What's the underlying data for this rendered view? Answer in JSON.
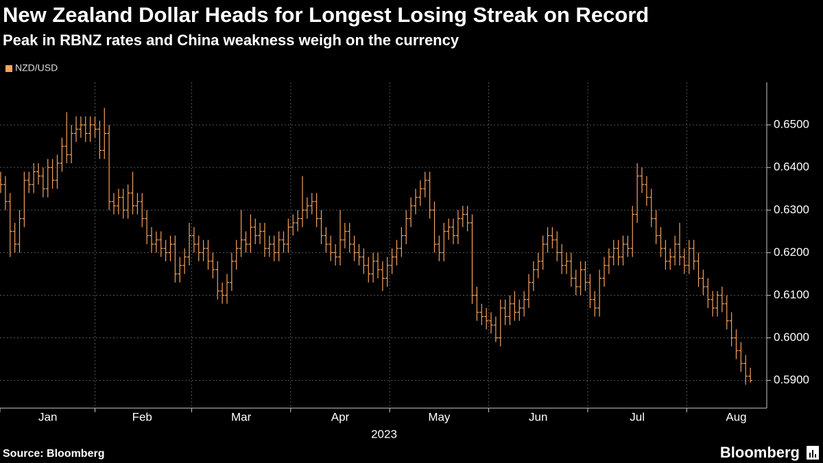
{
  "chart_data": {
    "type": "ohlc",
    "title": "New Zealand Dollar Heads for Longest Losing Streak on Record",
    "subtitle": "Peak in RBNZ rates and China weakness weigh on the currency",
    "xlabel": "2023",
    "source": "Source: Bloomberg",
    "brand": "Bloomberg",
    "legend": "top-left",
    "grid": true,
    "ylim": [
      0.5835,
      0.66
    ],
    "yticks": [
      {
        "value": 0.59,
        "label": "0.5900"
      },
      {
        "value": 0.6,
        "label": "0.6000"
      },
      {
        "value": 0.61,
        "label": "0.6100"
      },
      {
        "value": 0.62,
        "label": "0.6200"
      },
      {
        "value": 0.63,
        "label": "0.6300"
      },
      {
        "value": 0.64,
        "label": "0.6400"
      },
      {
        "value": 0.65,
        "label": "0.6500"
      }
    ],
    "categories": [
      null,
      null,
      null,
      null,
      null,
      null,
      null,
      null,
      null,
      null,
      "Jan",
      null,
      null,
      null,
      null,
      null,
      null,
      null,
      null,
      null,
      null,
      null,
      null,
      null,
      null,
      null,
      null,
      null,
      null,
      null,
      "Feb",
      null,
      null,
      null,
      null,
      null,
      null,
      null,
      null,
      null,
      null,
      null,
      null,
      null,
      null,
      null,
      null,
      null,
      null,
      null,
      null,
      "Mar",
      null,
      null,
      null,
      null,
      null,
      null,
      null,
      null,
      null,
      null,
      null,
      null,
      null,
      null,
      null,
      null,
      null,
      null,
      null,
      null,
      "Apr",
      null,
      null,
      null,
      null,
      null,
      null,
      null,
      null,
      null,
      null,
      null,
      null,
      null,
      null,
      null,
      null,
      null,
      null,
      null,
      null,
      "May",
      null,
      null,
      null,
      null,
      null,
      null,
      null,
      null,
      null,
      null,
      null,
      null,
      null,
      null,
      null,
      null,
      null,
      null,
      null,
      null,
      "Jun",
      null,
      null,
      null,
      null,
      null,
      null,
      null,
      null,
      null,
      null,
      null,
      null,
      null,
      null,
      null,
      null,
      null,
      null,
      null,
      null,
      "Jul",
      null,
      null,
      null,
      null,
      null,
      null,
      null,
      null,
      null,
      null,
      null,
      null,
      null,
      null,
      null,
      null,
      null,
      null,
      null,
      null,
      "Aug",
      null,
      null,
      null
    ],
    "series": [
      {
        "name": "NZD/USD",
        "color": "#f7a35c",
        "open": [
          0.637,
          0.636,
          0.632,
          0.625,
          0.622,
          0.628,
          0.637,
          0.636,
          0.639,
          0.638,
          0.635,
          0.64,
          0.637,
          0.641,
          0.645,
          0.643,
          0.648,
          0.649,
          0.65,
          0.648,
          0.65,
          0.649,
          0.644,
          0.648,
          0.632,
          0.631,
          0.633,
          0.63,
          0.634,
          0.631,
          0.632,
          0.628,
          0.624,
          0.622,
          0.623,
          0.621,
          0.62,
          0.622,
          0.615,
          0.617,
          0.619,
          0.624,
          0.622,
          0.62,
          0.621,
          0.618,
          0.616,
          0.611,
          0.61,
          0.613,
          0.618,
          0.621,
          0.623,
          0.622,
          0.626,
          0.624,
          0.625,
          0.621,
          0.622,
          0.62,
          0.623,
          0.622,
          0.626,
          0.627,
          0.628,
          0.63,
          0.631,
          0.632,
          0.628,
          0.624,
          0.622,
          0.62,
          0.619,
          0.623,
          0.625,
          0.622,
          0.62,
          0.619,
          0.617,
          0.615,
          0.618,
          0.616,
          0.614,
          0.617,
          0.619,
          0.621,
          0.624,
          0.628,
          0.631,
          0.633,
          0.635,
          0.637,
          0.63,
          0.622,
          0.62,
          0.625,
          0.626,
          0.624,
          0.628,
          0.629,
          0.627,
          0.61,
          0.606,
          0.605,
          0.604,
          0.603,
          0.6,
          0.607,
          0.605,
          0.608,
          0.606,
          0.607,
          0.609,
          0.613,
          0.616,
          0.618,
          0.622,
          0.624,
          0.623,
          0.62,
          0.617,
          0.618,
          0.614,
          0.612,
          0.616,
          0.613,
          0.609,
          0.607,
          0.614,
          0.617,
          0.619,
          0.621,
          0.619,
          0.622,
          0.621,
          0.629,
          0.638,
          0.636,
          0.633,
          0.628,
          0.624,
          0.621,
          0.618,
          0.619,
          0.622,
          0.619,
          0.617,
          0.621,
          0.618,
          0.614,
          0.612,
          0.609,
          0.607,
          0.61,
          0.608,
          0.604,
          0.6,
          0.597,
          0.594,
          0.591
        ],
        "high": [
          0.639,
          0.638,
          0.634,
          0.627,
          0.63,
          0.639,
          0.639,
          0.641,
          0.641,
          0.64,
          0.642,
          0.642,
          0.643,
          0.647,
          0.653,
          0.65,
          0.652,
          0.652,
          0.652,
          0.652,
          0.652,
          0.651,
          0.654,
          0.65,
          0.634,
          0.635,
          0.635,
          0.636,
          0.639,
          0.634,
          0.634,
          0.63,
          0.626,
          0.625,
          0.625,
          0.623,
          0.624,
          0.624,
          0.619,
          0.621,
          0.627,
          0.626,
          0.624,
          0.623,
          0.623,
          0.62,
          0.618,
          0.613,
          0.615,
          0.62,
          0.623,
          0.63,
          0.625,
          0.629,
          0.628,
          0.627,
          0.627,
          0.624,
          0.624,
          0.625,
          0.625,
          0.628,
          0.629,
          0.63,
          0.638,
          0.633,
          0.634,
          0.634,
          0.63,
          0.626,
          0.624,
          0.622,
          0.63,
          0.627,
          0.627,
          0.624,
          0.622,
          0.621,
          0.619,
          0.62,
          0.62,
          0.618,
          0.619,
          0.621,
          0.623,
          0.626,
          0.63,
          0.633,
          0.635,
          0.637,
          0.639,
          0.639,
          0.632,
          0.624,
          0.627,
          0.628,
          0.628,
          0.63,
          0.631,
          0.631,
          0.629,
          0.612,
          0.608,
          0.607,
          0.606,
          0.605,
          0.609,
          0.609,
          0.61,
          0.611,
          0.609,
          0.611,
          0.615,
          0.618,
          0.62,
          0.624,
          0.626,
          0.626,
          0.625,
          0.622,
          0.62,
          0.62,
          0.616,
          0.618,
          0.618,
          0.615,
          0.611,
          0.616,
          0.619,
          0.621,
          0.623,
          0.623,
          0.624,
          0.624,
          0.631,
          0.641,
          0.64,
          0.638,
          0.635,
          0.63,
          0.626,
          0.623,
          0.621,
          0.624,
          0.627,
          0.621,
          0.623,
          0.623,
          0.62,
          0.616,
          0.614,
          0.611,
          0.611,
          0.612,
          0.61,
          0.606,
          0.602,
          0.599,
          0.596,
          0.593
        ],
        "low": [
          0.634,
          0.63,
          0.619,
          0.62,
          0.62,
          0.626,
          0.634,
          0.634,
          0.636,
          0.633,
          0.633,
          0.635,
          0.635,
          0.639,
          0.641,
          0.641,
          0.646,
          0.647,
          0.646,
          0.646,
          0.647,
          0.642,
          0.642,
          0.63,
          0.629,
          0.629,
          0.628,
          0.628,
          0.629,
          0.629,
          0.626,
          0.622,
          0.62,
          0.62,
          0.619,
          0.618,
          0.618,
          0.613,
          0.613,
          0.615,
          0.617,
          0.62,
          0.618,
          0.618,
          0.616,
          0.614,
          0.609,
          0.608,
          0.608,
          0.611,
          0.616,
          0.619,
          0.62,
          0.62,
          0.622,
          0.622,
          0.619,
          0.619,
          0.618,
          0.618,
          0.62,
          0.62,
          0.624,
          0.625,
          0.626,
          0.628,
          0.629,
          0.626,
          0.622,
          0.62,
          0.618,
          0.617,
          0.617,
          0.621,
          0.62,
          0.618,
          0.617,
          0.615,
          0.613,
          0.613,
          0.614,
          0.611,
          0.612,
          0.615,
          0.617,
          0.619,
          0.622,
          0.626,
          0.629,
          0.631,
          0.633,
          0.628,
          0.62,
          0.618,
          0.618,
          0.623,
          0.622,
          0.622,
          0.626,
          0.625,
          0.608,
          0.604,
          0.603,
          0.602,
          0.601,
          0.599,
          0.598,
          0.603,
          0.603,
          0.604,
          0.604,
          0.605,
          0.607,
          0.611,
          0.614,
          0.616,
          0.62,
          0.621,
          0.618,
          0.615,
          0.615,
          0.612,
          0.61,
          0.61,
          0.611,
          0.607,
          0.605,
          0.605,
          0.612,
          0.615,
          0.617,
          0.617,
          0.617,
          0.619,
          0.619,
          0.627,
          0.634,
          0.631,
          0.626,
          0.622,
          0.619,
          0.616,
          0.616,
          0.617,
          0.617,
          0.615,
          0.615,
          0.616,
          0.612,
          0.61,
          0.607,
          0.605,
          0.605,
          0.606,
          0.602,
          0.598,
          0.595,
          0.592,
          0.589,
          0.5895
        ],
        "close": [
          0.636,
          0.632,
          0.625,
          0.622,
          0.628,
          0.637,
          0.636,
          0.639,
          0.638,
          0.635,
          0.64,
          0.637,
          0.641,
          0.645,
          0.643,
          0.648,
          0.649,
          0.65,
          0.648,
          0.65,
          0.649,
          0.644,
          0.648,
          0.632,
          0.631,
          0.633,
          0.63,
          0.634,
          0.631,
          0.632,
          0.628,
          0.624,
          0.622,
          0.623,
          0.621,
          0.62,
          0.622,
          0.615,
          0.617,
          0.619,
          0.624,
          0.622,
          0.62,
          0.621,
          0.618,
          0.616,
          0.611,
          0.61,
          0.613,
          0.618,
          0.621,
          0.623,
          0.622,
          0.626,
          0.624,
          0.625,
          0.621,
          0.622,
          0.62,
          0.623,
          0.622,
          0.626,
          0.627,
          0.628,
          0.63,
          0.631,
          0.632,
          0.628,
          0.624,
          0.622,
          0.62,
          0.619,
          0.623,
          0.625,
          0.622,
          0.62,
          0.619,
          0.617,
          0.615,
          0.618,
          0.616,
          0.614,
          0.617,
          0.619,
          0.621,
          0.624,
          0.628,
          0.631,
          0.633,
          0.635,
          0.637,
          0.63,
          0.622,
          0.62,
          0.625,
          0.626,
          0.624,
          0.628,
          0.629,
          0.627,
          0.61,
          0.606,
          0.605,
          0.604,
          0.603,
          0.6,
          0.607,
          0.605,
          0.608,
          0.606,
          0.607,
          0.609,
          0.613,
          0.616,
          0.618,
          0.622,
          0.624,
          0.623,
          0.62,
          0.617,
          0.618,
          0.614,
          0.612,
          0.616,
          0.613,
          0.609,
          0.607,
          0.614,
          0.617,
          0.619,
          0.621,
          0.619,
          0.622,
          0.621,
          0.629,
          0.638,
          0.636,
          0.633,
          0.628,
          0.624,
          0.621,
          0.618,
          0.619,
          0.622,
          0.619,
          0.617,
          0.621,
          0.618,
          0.614,
          0.612,
          0.609,
          0.607,
          0.61,
          0.608,
          0.604,
          0.6,
          0.597,
          0.594,
          0.591,
          0.59
        ]
      }
    ]
  }
}
